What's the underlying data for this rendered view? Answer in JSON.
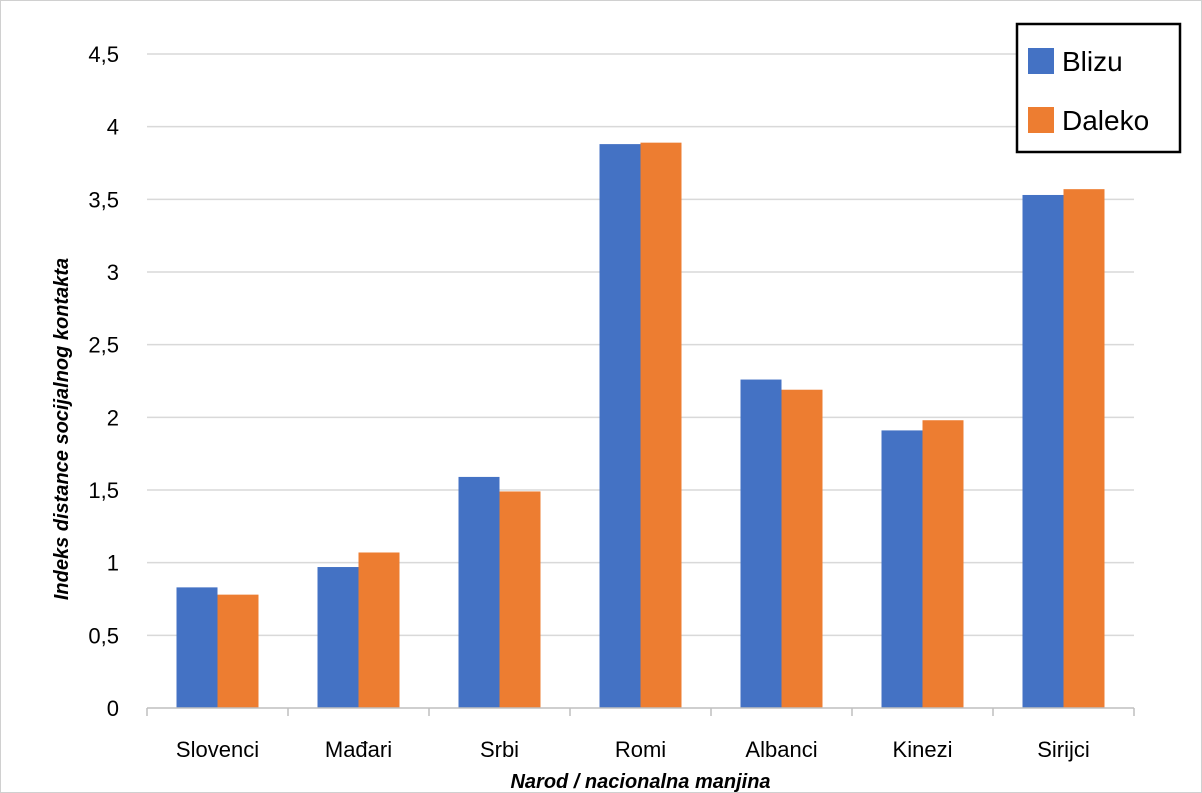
{
  "chart_data": {
    "type": "bar",
    "title": "",
    "xlabel": "Narod / nacionalna manjina",
    "ylabel": "Indeks distance socijalnog kontakta",
    "categories": [
      "Slovenci",
      "Mađari",
      "Srbi",
      "Romi",
      "Albanci",
      "Kinezi",
      "Sirijci"
    ],
    "series": [
      {
        "name": "Blizu",
        "color": "#4472C4",
        "values": [
          0.83,
          0.97,
          1.59,
          3.88,
          2.26,
          1.91,
          3.53
        ]
      },
      {
        "name": "Daleko",
        "color": "#ED7D31",
        "values": [
          0.78,
          1.07,
          1.49,
          3.89,
          2.19,
          1.98,
          3.57
        ]
      }
    ],
    "ylim": [
      0,
      4.5
    ],
    "yticks": [
      "0",
      "0,5",
      "1",
      "1,5",
      "2",
      "2,5",
      "3",
      "3,5",
      "4",
      "4,5"
    ],
    "grid": true,
    "legend_position": "top-right"
  }
}
